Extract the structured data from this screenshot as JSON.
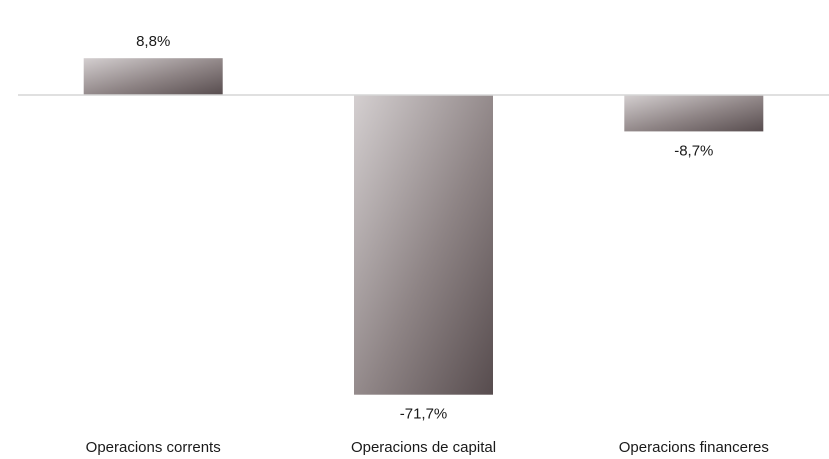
{
  "chart_data": {
    "type": "bar",
    "title": "",
    "xlabel": "",
    "ylabel": "",
    "categories": [
      "Operacions corrents",
      "Operacions de capital",
      "Operacions financeres"
    ],
    "values": [
      8.8,
      -71.7,
      -8.7
    ],
    "data_labels": [
      "8,8%",
      "-71,7%",
      "-8,7%"
    ],
    "unit": "%",
    "ylim": [
      -71.7,
      8.8
    ],
    "grid": false,
    "legend": "none",
    "colors": {
      "bar_gradient_start": "#d4cfd0",
      "bar_gradient_mid": "#8e8485",
      "bar_gradient_end": "#574c4e",
      "baseline": "#d6d6d6",
      "text": "#1a1a1a"
    }
  }
}
